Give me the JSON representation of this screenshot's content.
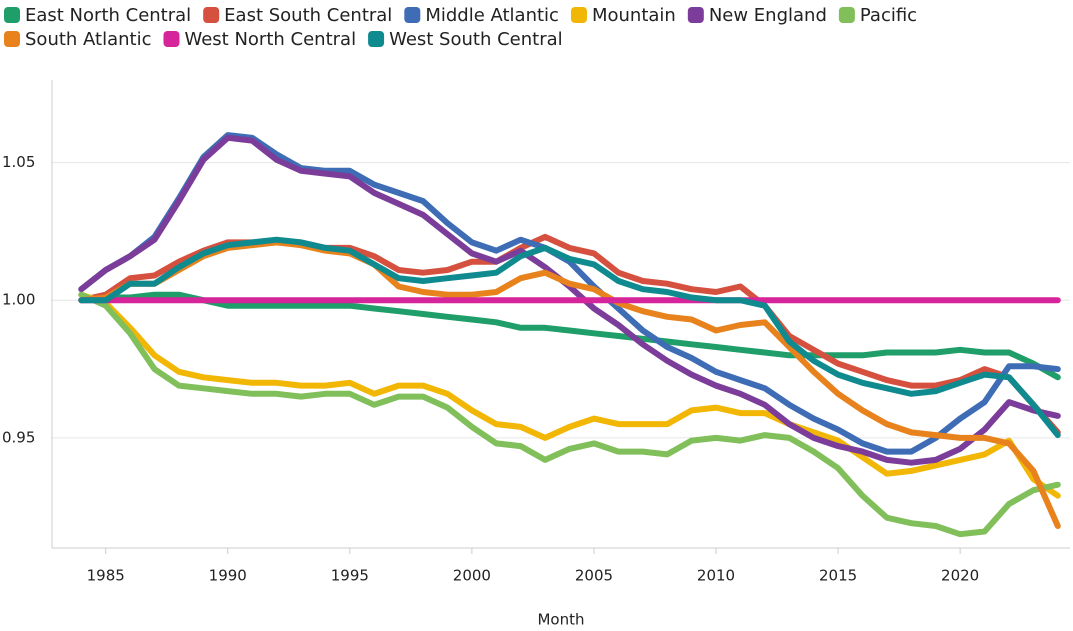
{
  "chart_data": {
    "type": "line",
    "x_label": "Month",
    "legend": "top",
    "grid": true,
    "x": [
      1984,
      1985,
      1986,
      1987,
      1988,
      1989,
      1990,
      1991,
      1992,
      1993,
      1994,
      1995,
      1996,
      1997,
      1998,
      1999,
      2000,
      2001,
      2002,
      2003,
      2004,
      2005,
      2006,
      2007,
      2008,
      2009,
      2010,
      2011,
      2012,
      2013,
      2014,
      2015,
      2016,
      2017,
      2018,
      2019,
      2020,
      2021,
      2022,
      2023,
      2024
    ],
    "xlim": [
      1982.8,
      2024.5
    ],
    "xticks": [
      1985,
      1990,
      1995,
      2000,
      2005,
      2010,
      2015,
      2020
    ],
    "ylim": [
      0.91,
      1.08
    ],
    "yticks": [
      0.95,
      {
        "value": 1,
        "label": "1.00"
      },
      1.05
    ],
    "series": [
      {
        "name": "East North Central",
        "color": "#1f9e6a",
        "values": [
          1.0,
          1.001,
          1.001,
          1.002,
          1.002,
          1.0,
          0.998,
          0.998,
          0.998,
          0.998,
          0.998,
          0.998,
          0.997,
          0.996,
          0.995,
          0.994,
          0.993,
          0.992,
          0.99,
          0.99,
          0.989,
          0.988,
          0.987,
          0.986,
          0.985,
          0.984,
          0.983,
          0.982,
          0.981,
          0.98,
          0.98,
          0.98,
          0.98,
          0.981,
          0.981,
          0.981,
          0.982,
          0.981,
          0.981,
          0.977,
          0.972
        ]
      },
      {
        "name": "East South Central",
        "color": "#d5503e",
        "values": [
          1.0,
          1.002,
          1.008,
          1.009,
          1.014,
          1.018,
          1.021,
          1.021,
          1.021,
          1.021,
          1.019,
          1.019,
          1.016,
          1.011,
          1.01,
          1.011,
          1.014,
          1.014,
          1.019,
          1.023,
          1.019,
          1.017,
          1.01,
          1.007,
          1.006,
          1.004,
          1.003,
          1.005,
          0.998,
          0.987,
          0.982,
          0.977,
          0.974,
          0.971,
          0.969,
          0.969,
          0.971,
          0.975,
          0.972,
          0.962,
          0.952
        ]
      },
      {
        "name": "Middle Atlantic",
        "color": "#3e6db5",
        "values": [
          1.004,
          1.011,
          1.016,
          1.023,
          1.037,
          1.052,
          1.06,
          1.059,
          1.053,
          1.048,
          1.047,
          1.047,
          1.042,
          1.039,
          1.036,
          1.028,
          1.021,
          1.018,
          1.022,
          1.019,
          1.014,
          1.005,
          0.997,
          0.989,
          0.983,
          0.979,
          0.974,
          0.971,
          0.968,
          0.962,
          0.957,
          0.953,
          0.948,
          0.945,
          0.945,
          0.95,
          0.957,
          0.963,
          0.976,
          0.976,
          0.975
        ]
      },
      {
        "name": "Mountain",
        "color": "#f2b705",
        "values": [
          1.002,
          0.999,
          0.99,
          0.98,
          0.974,
          0.972,
          0.971,
          0.97,
          0.97,
          0.969,
          0.969,
          0.97,
          0.966,
          0.969,
          0.969,
          0.966,
          0.96,
          0.955,
          0.954,
          0.95,
          0.954,
          0.957,
          0.955,
          0.955,
          0.955,
          0.96,
          0.961,
          0.959,
          0.959,
          0.955,
          0.952,
          0.949,
          0.943,
          0.937,
          0.938,
          0.94,
          0.942,
          0.944,
          0.949,
          0.935,
          0.929
        ]
      },
      {
        "name": "New England",
        "color": "#7b3d99",
        "values": [
          1.004,
          1.011,
          1.016,
          1.022,
          1.036,
          1.051,
          1.059,
          1.058,
          1.051,
          1.047,
          1.046,
          1.045,
          1.039,
          1.035,
          1.031,
          1.024,
          1.017,
          1.014,
          1.018,
          1.012,
          1.005,
          0.997,
          0.991,
          0.984,
          0.978,
          0.973,
          0.969,
          0.966,
          0.962,
          0.955,
          0.95,
          0.947,
          0.945,
          0.942,
          0.941,
          0.942,
          0.946,
          0.953,
          0.963,
          0.96,
          0.958
        ]
      },
      {
        "name": "Pacific",
        "color": "#80bf5a",
        "values": [
          1.002,
          0.998,
          0.988,
          0.975,
          0.969,
          0.968,
          0.967,
          0.966,
          0.966,
          0.965,
          0.966,
          0.966,
          0.962,
          0.965,
          0.965,
          0.961,
          0.954,
          0.948,
          0.947,
          0.942,
          0.946,
          0.948,
          0.945,
          0.945,
          0.944,
          0.949,
          0.95,
          0.949,
          0.951,
          0.95,
          0.945,
          0.939,
          0.929,
          0.921,
          0.919,
          0.918,
          0.915,
          0.916,
          0.926,
          0.931,
          0.933
        ]
      },
      {
        "name": "South Atlantic",
        "color": "#e8821c",
        "values": [
          1.0,
          1.001,
          1.006,
          1.006,
          1.011,
          1.016,
          1.019,
          1.02,
          1.021,
          1.02,
          1.018,
          1.017,
          1.013,
          1.005,
          1.003,
          1.002,
          1.002,
          1.003,
          1.008,
          1.01,
          1.006,
          1.004,
          0.999,
          0.996,
          0.994,
          0.993,
          0.989,
          0.991,
          0.992,
          0.983,
          0.974,
          0.966,
          0.96,
          0.955,
          0.952,
          0.951,
          0.95,
          0.95,
          0.948,
          0.938,
          0.918
        ]
      },
      {
        "name": "West North Central",
        "color": "#d6249a",
        "values": [
          1,
          1,
          1,
          1,
          1,
          1,
          1,
          1,
          1,
          1,
          1,
          1,
          1,
          1,
          1,
          1,
          1,
          1,
          1,
          1,
          1,
          1,
          1,
          1,
          1,
          1,
          1,
          1,
          1,
          1,
          1,
          1,
          1,
          1,
          1,
          1,
          1,
          1,
          1,
          1,
          1
        ]
      },
      {
        "name": "West South Central",
        "color": "#0f8a8f",
        "values": [
          1.0,
          1.0,
          1.006,
          1.006,
          1.012,
          1.017,
          1.02,
          1.021,
          1.022,
          1.021,
          1.019,
          1.018,
          1.013,
          1.008,
          1.007,
          1.008,
          1.009,
          1.01,
          1.016,
          1.019,
          1.015,
          1.013,
          1.007,
          1.004,
          1.003,
          1.001,
          1.0,
          1.0,
          0.998,
          0.985,
          0.978,
          0.973,
          0.97,
          0.968,
          0.966,
          0.967,
          0.97,
          0.973,
          0.972,
          0.962,
          0.951
        ]
      }
    ]
  }
}
